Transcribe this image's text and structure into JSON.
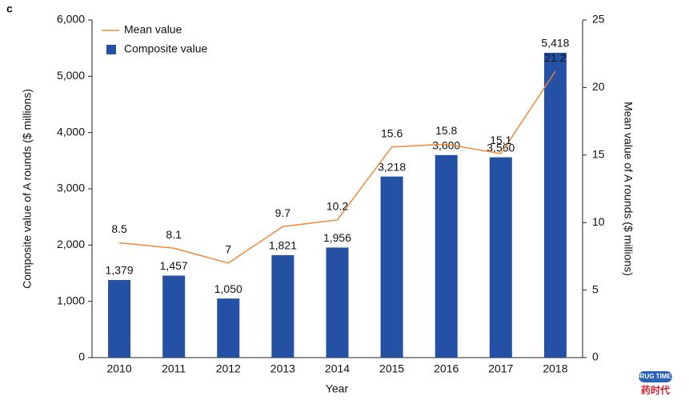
{
  "panel_label": "c",
  "watermark": {
    "top": "DRUG TIMES",
    "bottom": "药时代"
  },
  "chart_data": {
    "type": "bar",
    "x_label": "Year",
    "y_label": "Composite value of A rounds ($ millions)",
    "y2_label": "Mean value of A rounds ($ millions)",
    "categories": [
      "2010",
      "2011",
      "2012",
      "2013",
      "2014",
      "2015",
      "2016",
      "2017",
      "2018"
    ],
    "series": [
      {
        "name": "Mean value",
        "type": "line",
        "axis": "y2",
        "color": "#f0883a",
        "values": [
          8.5,
          8.1,
          7.0,
          9.7,
          10.2,
          15.6,
          15.8,
          15.1,
          21.2
        ]
      },
      {
        "name": "Composite value",
        "type": "bar",
        "color": "#2451a3",
        "values": [
          1379,
          1457,
          1050,
          1821,
          1956,
          3218,
          3600,
          3560,
          5418
        ],
        "value_labels": [
          "1,379",
          "1,457",
          "1,050",
          "1,821",
          "1,956",
          "3,218",
          "3,600",
          "3,560",
          "5,418"
        ]
      }
    ],
    "ylim": [
      0,
      6000
    ],
    "yticks": [
      0,
      {
        "value": 1000,
        "label": "1,000"
      },
      {
        "value": 2000,
        "label": "2,000"
      },
      {
        "value": 3000,
        "label": "3,000"
      },
      {
        "value": 4000,
        "label": "4,000"
      },
      {
        "value": 5000,
        "label": "5,000"
      },
      {
        "value": 6000,
        "label": "6,000"
      }
    ],
    "y2lim": [
      0,
      25
    ],
    "y2ticks": [
      0,
      5,
      10,
      15,
      20,
      25
    ],
    "legend": "top-left",
    "grid": false
  }
}
